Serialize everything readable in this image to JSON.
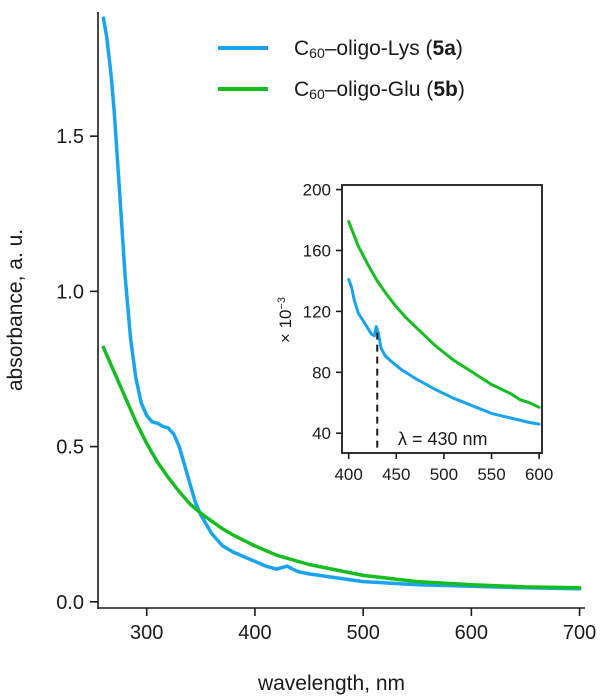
{
  "colors": {
    "lys": "#1aa3ee",
    "glu": "#16bd21",
    "axis": "#1a1a1a"
  },
  "chart_data": [
    {
      "type": "line",
      "xlabel": "wavelength, nm",
      "ylabel": "absorbance, a. u.",
      "xlim": [
        255,
        705
      ],
      "ylim": [
        -0.02,
        1.9
      ],
      "xticks": [
        300,
        400,
        500,
        600,
        700
      ],
      "xtick_labels": [
        "300",
        "400",
        "500",
        "600",
        "700"
      ],
      "yticks": [
        0.0,
        0.5,
        1.0,
        1.5
      ],
      "ytick_labels": [
        "0.0",
        "0.5",
        "1.0",
        "1.5"
      ],
      "legend": {
        "placement": "top-right",
        "items": [
          {
            "prefix": "C",
            "sub": "60",
            "text": "–oligo-Lys (",
            "bold": "5a",
            "suffix": ")",
            "series": "lys"
          },
          {
            "prefix": "C",
            "sub": "60",
            "text": "–oligo-Glu (",
            "bold": "5b",
            "suffix": ")",
            "series": "glu"
          }
        ]
      },
      "series": [
        {
          "name": "C60–oligo-Lys (5a)",
          "key": "lys",
          "x": [
            260,
            263,
            267,
            270,
            275,
            280,
            285,
            290,
            295,
            300,
            305,
            310,
            315,
            320,
            325,
            330,
            335,
            340,
            345,
            350,
            360,
            370,
            380,
            390,
            400,
            410,
            420,
            425,
            430,
            435,
            440,
            450,
            470,
            500,
            550,
            600,
            650,
            700
          ],
          "y": [
            1.88,
            1.82,
            1.7,
            1.58,
            1.32,
            1.05,
            0.85,
            0.72,
            0.64,
            0.6,
            0.58,
            0.575,
            0.565,
            0.56,
            0.54,
            0.5,
            0.44,
            0.38,
            0.32,
            0.28,
            0.22,
            0.18,
            0.16,
            0.145,
            0.13,
            0.115,
            0.105,
            0.11,
            0.115,
            0.105,
            0.097,
            0.09,
            0.08,
            0.065,
            0.055,
            0.05,
            0.045,
            0.042
          ]
        },
        {
          "name": "C60–oligo-Glu (5b)",
          "key": "glu",
          "x": [
            260,
            270,
            280,
            290,
            300,
            310,
            320,
            330,
            340,
            350,
            360,
            370,
            380,
            400,
            420,
            450,
            500,
            550,
            600,
            650,
            700
          ],
          "y": [
            0.82,
            0.74,
            0.66,
            0.58,
            0.51,
            0.45,
            0.4,
            0.355,
            0.315,
            0.285,
            0.26,
            0.235,
            0.215,
            0.18,
            0.15,
            0.12,
            0.085,
            0.065,
            0.055,
            0.048,
            0.045
          ]
        }
      ]
    },
    {
      "type": "line",
      "title": "inset",
      "ylabel_prefix": "× 10",
      "ylabel_exp": "−3",
      "xlim": [
        393,
        603
      ],
      "ylim": [
        27,
        203
      ],
      "xticks": [
        400,
        450,
        500,
        550,
        600
      ],
      "xtick_labels": [
        "400",
        "450",
        "500",
        "550",
        "600"
      ],
      "yticks": [
        40,
        80,
        120,
        160,
        200
      ],
      "ytick_labels": [
        "40",
        "80",
        "120",
        "160",
        "200"
      ],
      "annotation": {
        "text": "λ = 430 nm",
        "x": 430
      },
      "series": [
        {
          "name": "C60–oligo-Lys (5a)",
          "key": "lys",
          "x": [
            400,
            403,
            406,
            410,
            415,
            420,
            424,
            427,
            429,
            431,
            434,
            438,
            445,
            455,
            470,
            490,
            510,
            530,
            550,
            570,
            590,
            600
          ],
          "y": [
            141,
            136,
            127,
            119,
            114,
            109,
            105,
            104,
            110,
            106,
            96,
            91,
            87,
            82,
            76,
            69,
            63,
            58,
            53,
            50,
            47,
            46
          ]
        },
        {
          "name": "C60–oligo-Glu (5b)",
          "key": "glu",
          "x": [
            400,
            410,
            420,
            430,
            440,
            450,
            460,
            470,
            480,
            490,
            500,
            510,
            520,
            530,
            540,
            550,
            560,
            570,
            580,
            590,
            600
          ],
          "y": [
            179,
            163,
            151,
            140,
            131,
            123,
            116,
            110,
            104,
            98,
            93,
            88,
            84,
            80,
            76,
            72,
            69,
            66,
            62,
            60,
            57
          ]
        }
      ]
    }
  ]
}
